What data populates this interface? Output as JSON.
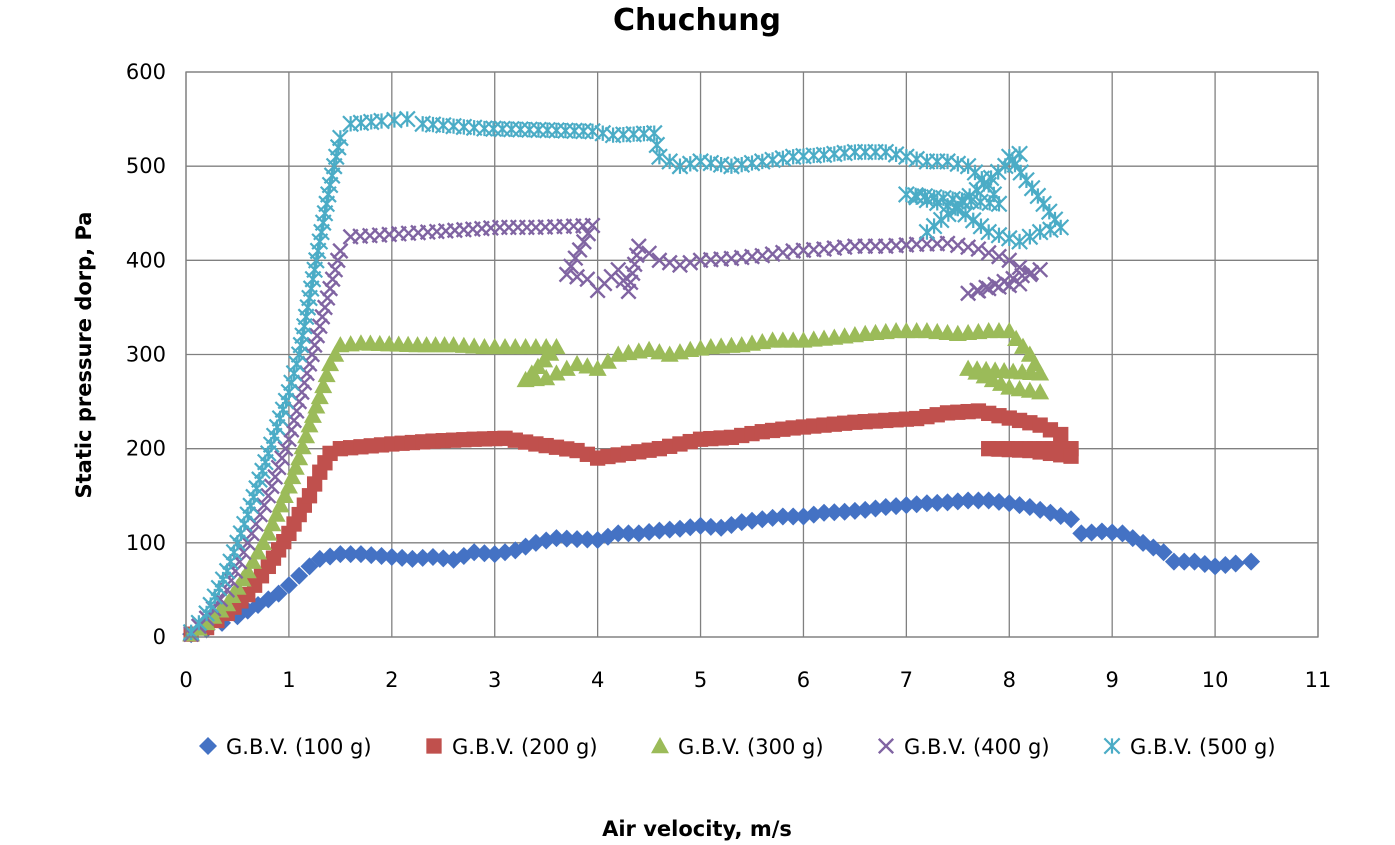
{
  "chart_data": {
    "type": "scatter",
    "title": "Chuchung",
    "xlabel": "Air velocity, m/s",
    "ylabel": "Static pressure dorp, Pa",
    "xlim": [
      0,
      11
    ],
    "ylim": [
      0,
      600
    ],
    "x_ticks": [
      "0",
      "1",
      "2",
      "3",
      "4",
      "5",
      "6",
      "7",
      "8",
      "9",
      "10",
      "11"
    ],
    "y_ticks": [
      "0",
      "100",
      "200",
      "300",
      "400",
      "500",
      "600"
    ],
    "grid": true,
    "legend_position": "bottom",
    "series": [
      {
        "name": "G.B.V. (100 g)",
        "marker": "diamond",
        "color": "#4472C4",
        "points": [
          [
            0.05,
            3
          ],
          [
            0.2,
            8
          ],
          [
            0.35,
            15
          ],
          [
            0.5,
            22
          ],
          [
            0.6,
            28
          ],
          [
            0.7,
            34
          ],
          [
            0.8,
            40
          ],
          [
            0.9,
            46
          ],
          [
            1.0,
            55
          ],
          [
            1.1,
            65
          ],
          [
            1.2,
            75
          ],
          [
            1.3,
            83
          ],
          [
            1.5,
            88
          ],
          [
            1.7,
            88
          ],
          [
            1.9,
            86
          ],
          [
            2.2,
            83
          ],
          [
            2.4,
            85
          ],
          [
            2.6,
            82
          ],
          [
            2.8,
            90
          ],
          [
            3.0,
            88
          ],
          [
            3.2,
            92
          ],
          [
            3.4,
            100
          ],
          [
            3.6,
            105
          ],
          [
            3.8,
            104
          ],
          [
            4.0,
            103
          ],
          [
            4.2,
            110
          ],
          [
            4.4,
            110
          ],
          [
            4.6,
            113
          ],
          [
            4.8,
            115
          ],
          [
            5.0,
            118
          ],
          [
            5.2,
            116
          ],
          [
            5.4,
            122
          ],
          [
            5.6,
            125
          ],
          [
            5.8,
            128
          ],
          [
            6.0,
            128
          ],
          [
            6.2,
            132
          ],
          [
            6.4,
            133
          ],
          [
            6.6,
            135
          ],
          [
            6.8,
            138
          ],
          [
            7.0,
            140
          ],
          [
            7.2,
            142
          ],
          [
            7.4,
            143
          ],
          [
            7.6,
            145
          ],
          [
            7.8,
            145
          ],
          [
            8.0,
            142
          ],
          [
            8.2,
            138
          ],
          [
            8.4,
            132
          ],
          [
            8.6,
            125
          ],
          [
            8.7,
            110
          ],
          [
            8.9,
            112
          ],
          [
            9.1,
            110
          ],
          [
            9.3,
            100
          ],
          [
            9.5,
            90
          ],
          [
            9.6,
            80
          ],
          [
            9.8,
            80
          ],
          [
            10.0,
            75
          ],
          [
            10.2,
            78
          ],
          [
            10.35,
            80
          ]
        ]
      },
      {
        "name": "G.B.V. (200 g)",
        "marker": "square",
        "color": "#C0504D",
        "points": [
          [
            0.05,
            3
          ],
          [
            0.2,
            10
          ],
          [
            0.4,
            25
          ],
          [
            0.6,
            45
          ],
          [
            0.8,
            75
          ],
          [
            1.0,
            110
          ],
          [
            1.1,
            130
          ],
          [
            1.2,
            150
          ],
          [
            1.3,
            175
          ],
          [
            1.4,
            195
          ],
          [
            1.5,
            200
          ],
          [
            1.7,
            202
          ],
          [
            2.0,
            205
          ],
          [
            2.4,
            208
          ],
          [
            2.8,
            210
          ],
          [
            3.1,
            211
          ],
          [
            3.4,
            205
          ],
          [
            3.8,
            198
          ],
          [
            4.0,
            190
          ],
          [
            4.3,
            195
          ],
          [
            4.6,
            200
          ],
          [
            4.8,
            205
          ],
          [
            5.0,
            210
          ],
          [
            5.3,
            212
          ],
          [
            5.6,
            218
          ],
          [
            5.9,
            222
          ],
          [
            6.2,
            225
          ],
          [
            6.5,
            228
          ],
          [
            6.8,
            230
          ],
          [
            7.1,
            232
          ],
          [
            7.4,
            238
          ],
          [
            7.7,
            240
          ],
          [
            7.9,
            235
          ],
          [
            8.1,
            230
          ],
          [
            8.3,
            225
          ],
          [
            8.5,
            215
          ],
          [
            8.6,
            200
          ],
          [
            7.8,
            200
          ],
          [
            8.2,
            198
          ],
          [
            8.6,
            192
          ]
        ]
      },
      {
        "name": "G.B.V. (300 g)",
        "marker": "triangle",
        "color": "#9BBB59",
        "points": [
          [
            0.05,
            3
          ],
          [
            0.2,
            15
          ],
          [
            0.4,
            35
          ],
          [
            0.6,
            70
          ],
          [
            0.8,
            110
          ],
          [
            1.0,
            160
          ],
          [
            1.1,
            190
          ],
          [
            1.2,
            225
          ],
          [
            1.3,
            255
          ],
          [
            1.4,
            290
          ],
          [
            1.5,
            310
          ],
          [
            1.7,
            312
          ],
          [
            2.25,
            310
          ],
          [
            2.6,
            310
          ],
          [
            2.9,
            308
          ],
          [
            3.3,
            308
          ],
          [
            3.6,
            308
          ],
          [
            3.3,
            273
          ],
          [
            3.5,
            275
          ],
          [
            3.8,
            290
          ],
          [
            4.0,
            285
          ],
          [
            4.2,
            300
          ],
          [
            4.5,
            305
          ],
          [
            4.7,
            300
          ],
          [
            4.9,
            305
          ],
          [
            5.1,
            308
          ],
          [
            5.4,
            310
          ],
          [
            5.7,
            315
          ],
          [
            6.0,
            315
          ],
          [
            6.3,
            318
          ],
          [
            6.6,
            322
          ],
          [
            6.9,
            325
          ],
          [
            7.2,
            325
          ],
          [
            7.5,
            322
          ],
          [
            7.8,
            325
          ],
          [
            8.0,
            325
          ],
          [
            8.2,
            300
          ],
          [
            8.3,
            280
          ],
          [
            7.6,
            285
          ],
          [
            8.0,
            265
          ],
          [
            8.3,
            260
          ]
        ]
      },
      {
        "name": "G.B.V. (400 g)",
        "marker": "x",
        "color": "#8064A2",
        "points": [
          [
            0.05,
            3
          ],
          [
            0.2,
            20
          ],
          [
            0.4,
            50
          ],
          [
            0.6,
            100
          ],
          [
            0.8,
            150
          ],
          [
            1.0,
            210
          ],
          [
            1.1,
            250
          ],
          [
            1.2,
            290
          ],
          [
            1.3,
            330
          ],
          [
            1.4,
            370
          ],
          [
            1.5,
            410
          ],
          [
            1.6,
            425
          ],
          [
            2.35,
            430
          ],
          [
            3.05,
            435
          ],
          [
            3.4,
            435
          ],
          [
            3.95,
            437
          ],
          [
            3.7,
            385
          ],
          [
            3.9,
            380
          ],
          [
            4.0,
            368
          ],
          [
            4.2,
            390
          ],
          [
            4.3,
            367
          ],
          [
            4.4,
            415
          ],
          [
            4.6,
            400
          ],
          [
            4.8,
            395
          ],
          [
            5.0,
            400
          ],
          [
            5.3,
            402
          ],
          [
            5.6,
            405
          ],
          [
            5.9,
            410
          ],
          [
            6.2,
            412
          ],
          [
            6.5,
            415
          ],
          [
            6.8,
            415
          ],
          [
            7.1,
            417
          ],
          [
            7.4,
            418
          ],
          [
            7.7,
            412
          ],
          [
            8.0,
            400
          ],
          [
            8.2,
            385
          ],
          [
            8.3,
            390
          ],
          [
            7.6,
            365
          ],
          [
            7.8,
            370
          ],
          [
            8.1,
            375
          ]
        ]
      },
      {
        "name": "G.B.V. (500 g)",
        "marker": "asterisk",
        "color": "#4BACC6",
        "points": [
          [
            0.05,
            5
          ],
          [
            0.2,
            25
          ],
          [
            0.4,
            70
          ],
          [
            0.6,
            130
          ],
          [
            0.8,
            195
          ],
          [
            1.0,
            260
          ],
          [
            1.1,
            300
          ],
          [
            1.2,
            360
          ],
          [
            1.3,
            420
          ],
          [
            1.4,
            480
          ],
          [
            1.5,
            530
          ],
          [
            1.6,
            545
          ],
          [
            1.9,
            548
          ],
          [
            2.15,
            550
          ],
          [
            2.3,
            545
          ],
          [
            2.9,
            540
          ],
          [
            3.95,
            537
          ],
          [
            4.15,
            533
          ],
          [
            4.55,
            535
          ],
          [
            4.6,
            510
          ],
          [
            4.8,
            500
          ],
          [
            5.0,
            505
          ],
          [
            5.3,
            500
          ],
          [
            5.6,
            505
          ],
          [
            5.9,
            510
          ],
          [
            6.2,
            512
          ],
          [
            6.5,
            515
          ],
          [
            6.8,
            515
          ],
          [
            7.0,
            510
          ],
          [
            7.2,
            505
          ],
          [
            7.4,
            505
          ],
          [
            7.6,
            500
          ],
          [
            7.8,
            480
          ],
          [
            7.9,
            460
          ],
          [
            7.0,
            470
          ],
          [
            7.5,
            455
          ],
          [
            7.8,
            430
          ],
          [
            8.1,
            420
          ],
          [
            8.3,
            430
          ],
          [
            8.5,
            435
          ],
          [
            8.0,
            510
          ],
          [
            8.1,
            513
          ],
          [
            7.2,
            430
          ]
        ]
      }
    ]
  }
}
